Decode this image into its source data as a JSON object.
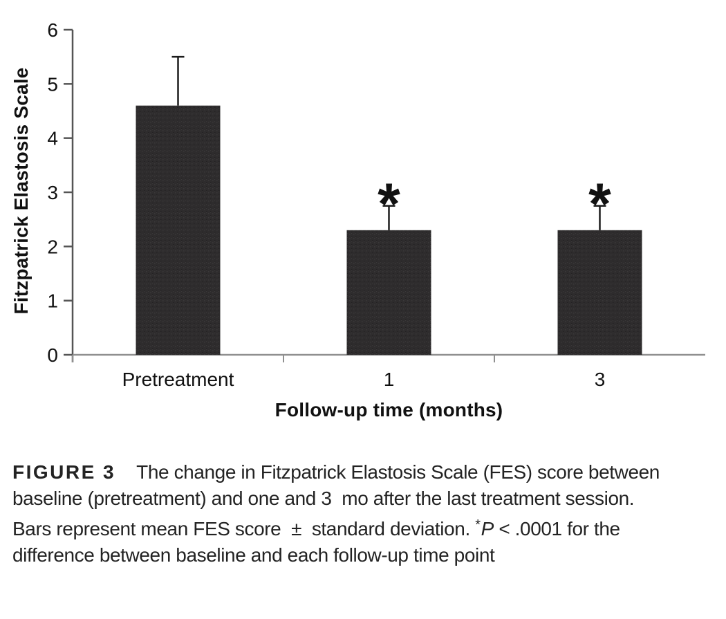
{
  "chart_data": {
    "type": "bar",
    "title": "",
    "categories": [
      "Pretreatment",
      "1",
      "3"
    ],
    "values": [
      4.6,
      2.3,
      2.3
    ],
    "errors_upper": [
      0.9,
      0.45,
      0.45
    ],
    "significance_markers": [
      "",
      "*",
      "*"
    ],
    "ylabel": "Fitzpatrick Elastosis Scale",
    "xlabel": "Follow-up time (months)",
    "ylim": [
      0,
      6
    ],
    "yticks": [
      0,
      1,
      2,
      3,
      4,
      5,
      6
    ],
    "grid": false,
    "legend_position": "none",
    "bar_color": "#2e2c2d",
    "bar_texture_light": "#3a3839",
    "bar_texture_dark": "#232122",
    "error_color": "#1c1c1c",
    "y_axis_color": "#555555",
    "x_axis_color": "#8f8f8f",
    "label_color": "#111111"
  },
  "caption": {
    "segments": [
      {
        "style": "figure-label",
        "text": "FIGURE 3"
      },
      {
        "style": "text",
        "text": "The change in Fitzpatrick Elastosis Scale (FES) score between baseline (pretreatment) and one and 3  mo after the last treatment session. Bars represent mean FES score  ±  standard deviation. "
      },
      {
        "style": "sup",
        "text": "*"
      },
      {
        "style": "italic",
        "text": "P"
      },
      {
        "style": "text",
        "text": " < .0001 for the difference between baseline and each follow-up time point"
      }
    ]
  }
}
